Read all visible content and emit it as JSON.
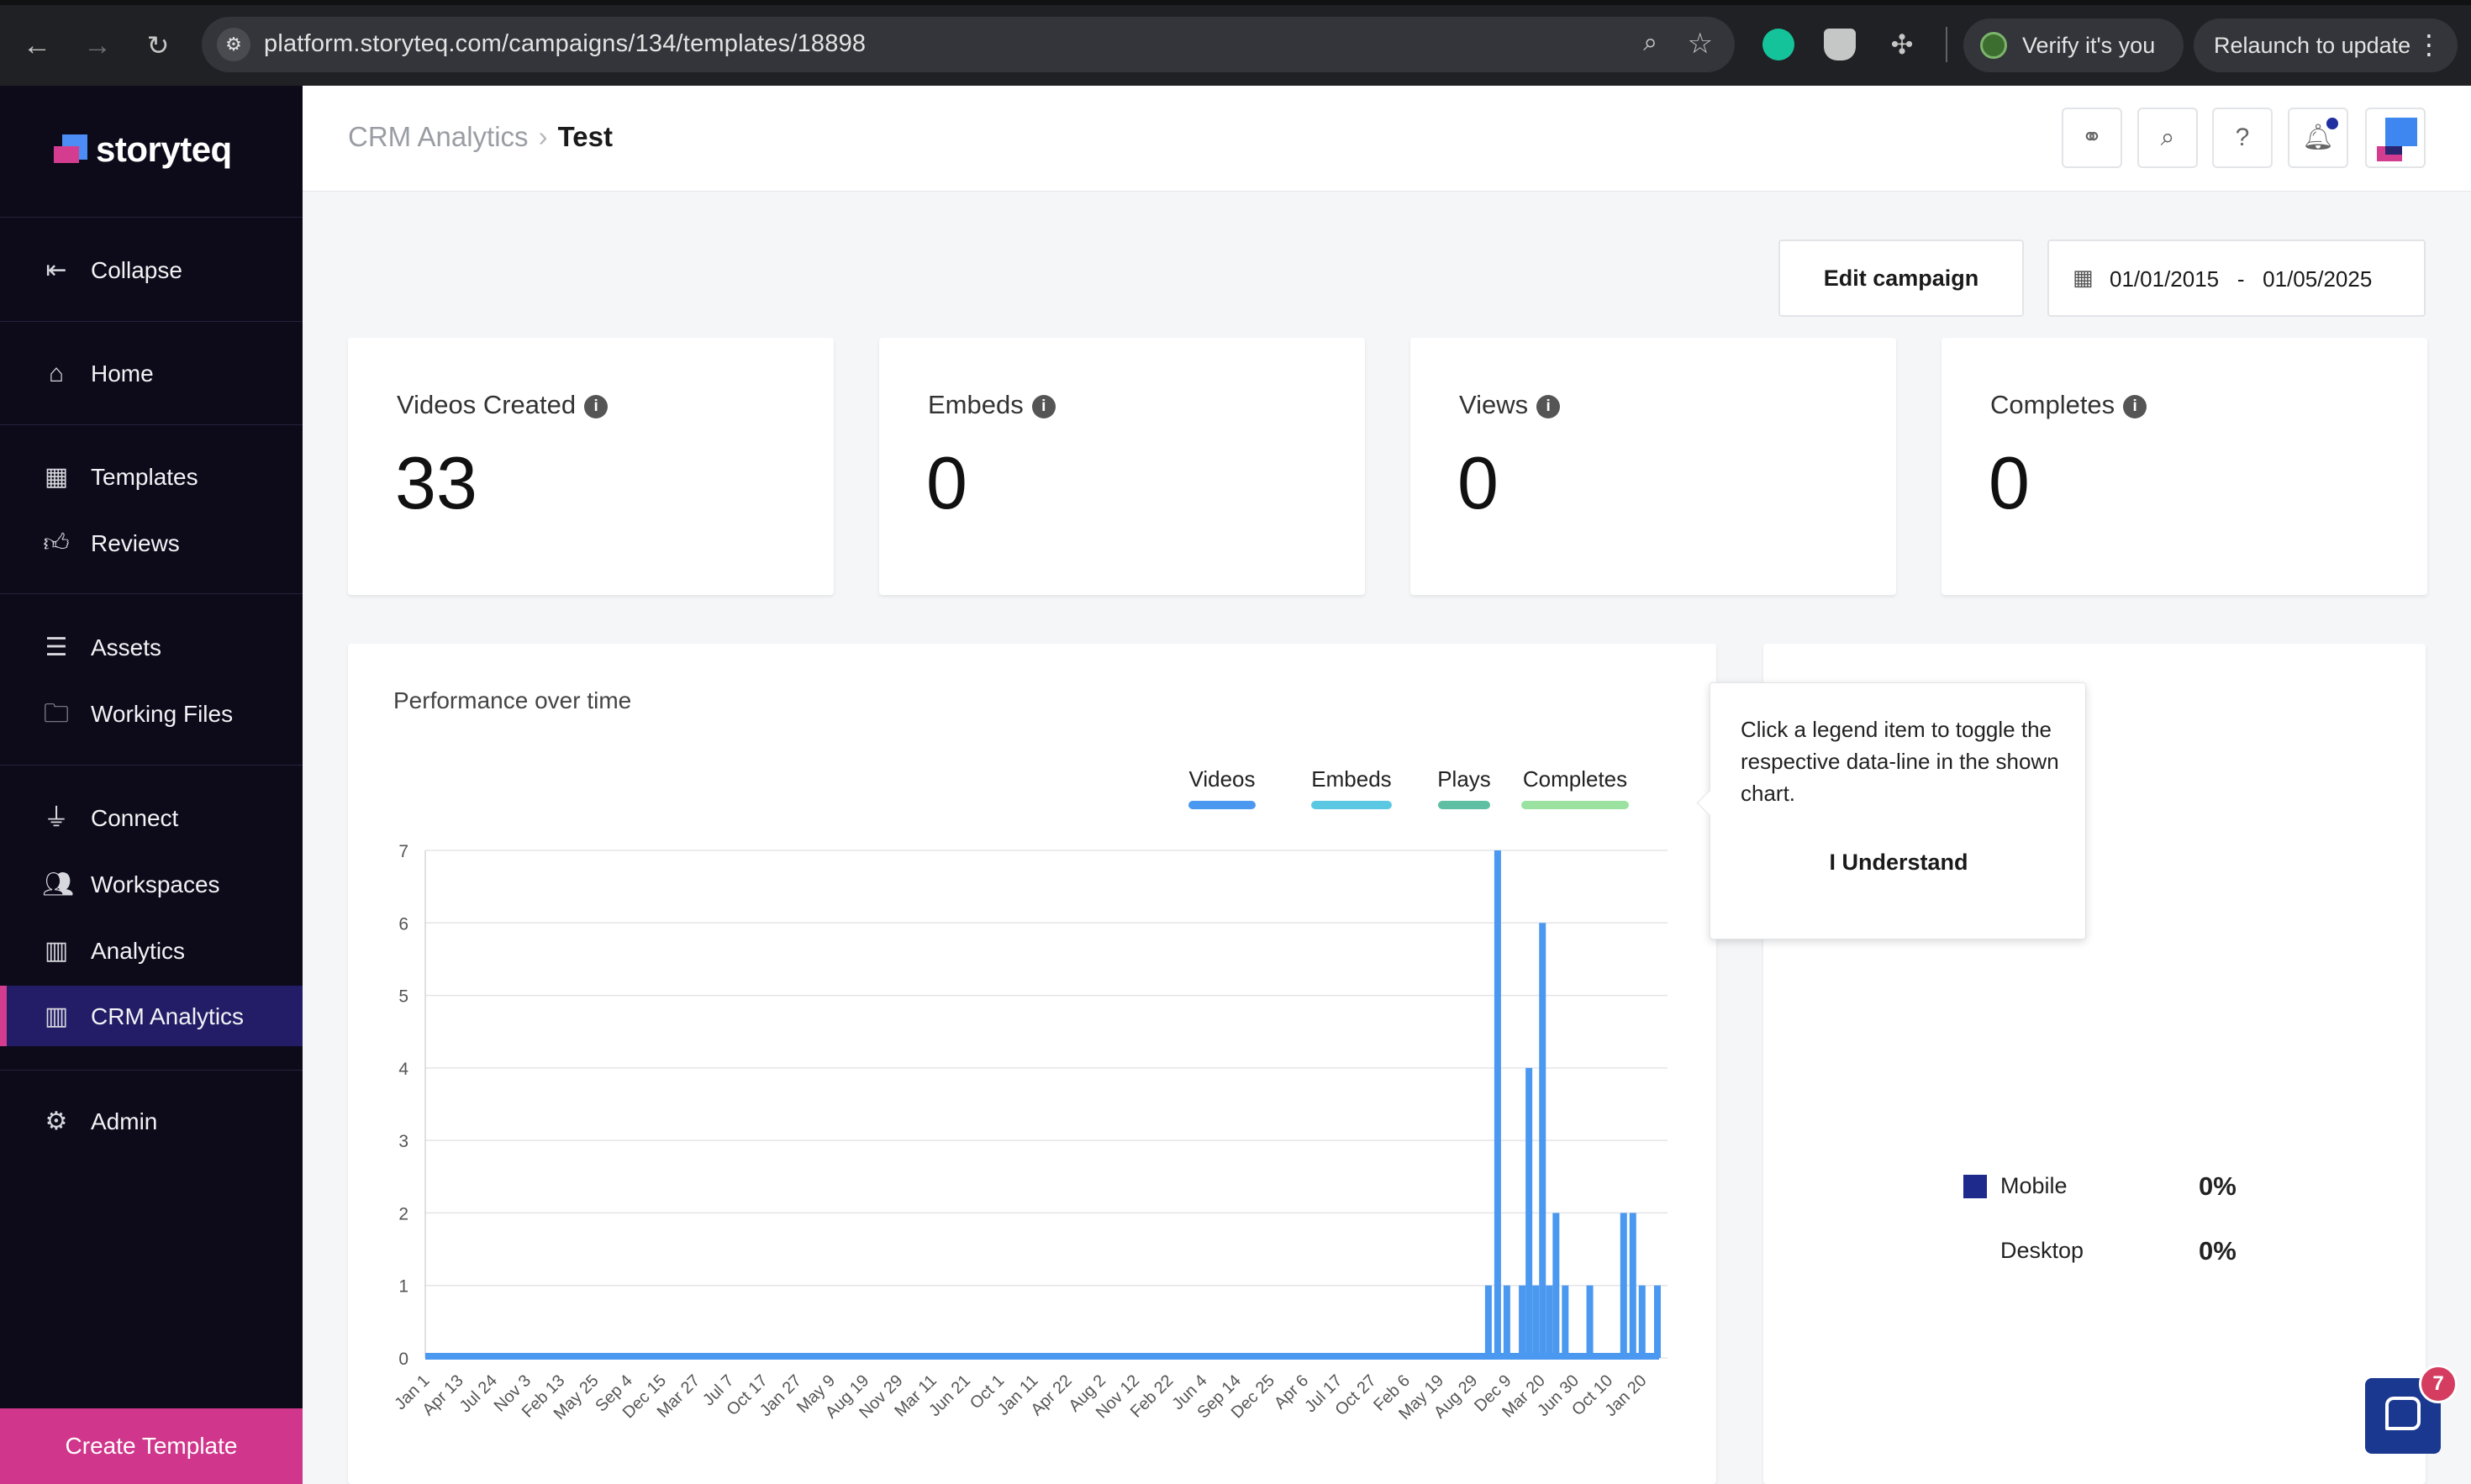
{
  "browser": {
    "url": "platform.storyteq.com/campaigns/134/templates/18898",
    "verify_label": "Verify it's you",
    "relaunch_label": "Relaunch to update"
  },
  "sidebar": {
    "logo_text": "storyteq",
    "collapse_label": "Collapse",
    "items": [
      {
        "label": "Home",
        "icon": "home-icon"
      },
      {
        "label": "Templates",
        "icon": "templates-icon"
      },
      {
        "label": "Reviews",
        "icon": "thumbs-up-icon"
      },
      {
        "label": "Assets",
        "icon": "assets-icon"
      },
      {
        "label": "Working Files",
        "icon": "folder-icon"
      },
      {
        "label": "Connect",
        "icon": "plug-icon"
      },
      {
        "label": "Workspaces",
        "icon": "users-icon"
      },
      {
        "label": "Analytics",
        "icon": "bar-chart-icon"
      },
      {
        "label": "CRM Analytics",
        "icon": "bar-chart-icon"
      },
      {
        "label": "Admin",
        "icon": "user-gear-icon"
      }
    ],
    "create_template_label": "Create Template",
    "active_item": "CRM Analytics",
    "accent_color": "#d0368b",
    "active_bg": "#231d67"
  },
  "header": {
    "breadcrumb_root": "CRM Analytics",
    "breadcrumb_current": "Test"
  },
  "controls": {
    "edit_campaign_label": "Edit campaign",
    "date_from": "01/01/2015",
    "date_sep": "-",
    "date_to": "01/05/2025"
  },
  "stats": [
    {
      "label": "Videos Created",
      "value": "33"
    },
    {
      "label": "Embeds",
      "value": "0"
    },
    {
      "label": "Views",
      "value": "0"
    },
    {
      "label": "Completes",
      "value": "0"
    }
  ],
  "chart_title": "Performance over time",
  "chart_data": {
    "type": "bar",
    "title": "Performance over time",
    "xlabel": "",
    "ylabel": "",
    "ylim": [
      0,
      7
    ],
    "yticks": [
      0,
      1,
      2,
      3,
      4,
      5,
      6,
      7
    ],
    "legend_position": "top-right",
    "legend": [
      {
        "name": "Videos",
        "color": "#4a98f0"
      },
      {
        "name": "Embeds",
        "color": "#5bc8e3"
      },
      {
        "name": "Plays",
        "color": "#5ebfa2"
      },
      {
        "name": "Completes",
        "color": "#9be2a0"
      }
    ],
    "x_ticks": [
      "Jan 1",
      "Apr 13",
      "Jul 24",
      "Nov 3",
      "Feb 13",
      "May 25",
      "Sep 4",
      "Dec 15",
      "Mar 27",
      "Jul 7",
      "Oct 17",
      "Jan 27",
      "May 9",
      "Aug 19",
      "Nov 29",
      "Mar 11",
      "Jun 21",
      "Oct 1",
      "Jan 11",
      "Apr 22",
      "Aug 2",
      "Nov 12",
      "Feb 22",
      "Jun 4",
      "Sep 14",
      "Dec 25",
      "Apr 6",
      "Jul 17",
      "Oct 27",
      "Feb 6",
      "May 19",
      "Aug 29",
      "Dec 9",
      "Mar 20",
      "Jun 30",
      "Oct 10",
      "Jan 20"
    ],
    "grid": true,
    "series": [
      {
        "name": "Videos",
        "color": "#4a98f0",
        "points": [
          {
            "x": "Aug 29",
            "value": 1
          },
          {
            "x": "Aug 29",
            "value": 7
          },
          {
            "x": "Aug 29",
            "value": 1
          },
          {
            "x": "Dec 9",
            "value": 1
          },
          {
            "x": "Dec 9",
            "value": 4
          },
          {
            "x": "Dec 9",
            "value": 1
          },
          {
            "x": "Dec 9",
            "value": 6
          },
          {
            "x": "Dec 9",
            "value": 1
          },
          {
            "x": "Mar 20",
            "value": 2
          },
          {
            "x": "Mar 20",
            "value": 1
          },
          {
            "x": "Jun 30",
            "value": 1
          },
          {
            "x": "Oct 10",
            "value": 2
          },
          {
            "x": "Oct 10",
            "value": 2
          },
          {
            "x": "Oct 10",
            "value": 1
          },
          {
            "x": "Jan 20",
            "value": 1
          }
        ]
      }
    ]
  },
  "tooltip": {
    "message": "Click a legend item to toggle the respective data-line in the shown chart.",
    "button_label": "I Understand"
  },
  "devices": [
    {
      "name": "Mobile",
      "percent": "0%",
      "color": "#1e2a8c"
    },
    {
      "name": "Desktop",
      "percent": "0%",
      "color": ""
    }
  ],
  "help_badge_count": "7"
}
